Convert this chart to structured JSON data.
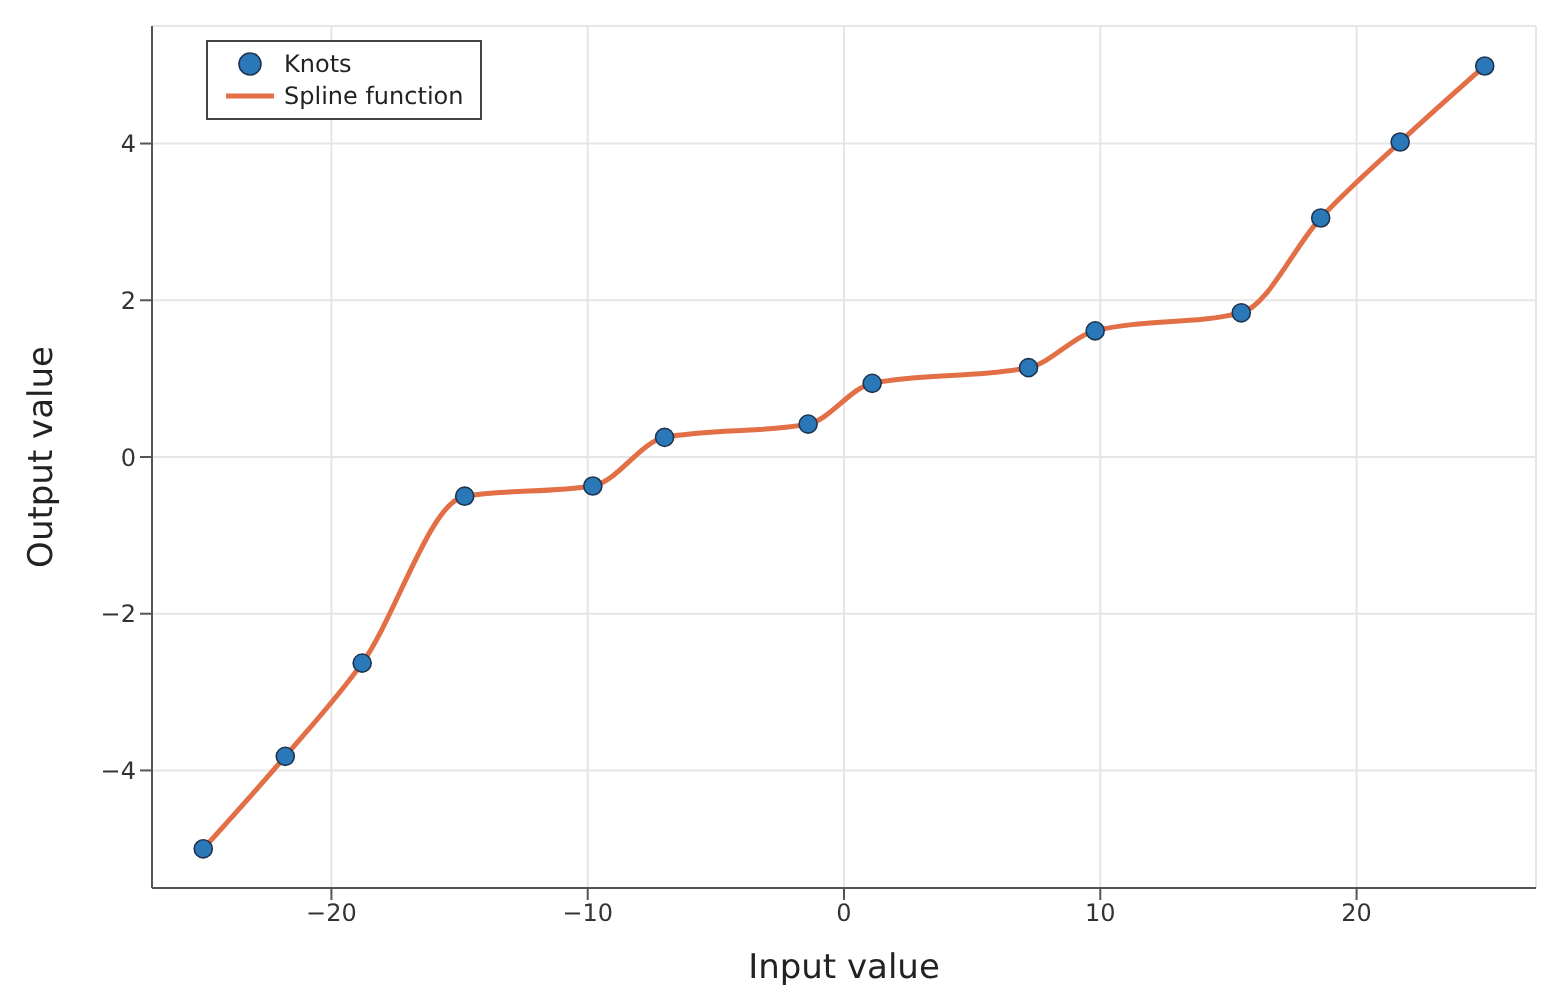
{
  "chart_data": {
    "type": "line",
    "xlabel": "Input value",
    "ylabel": "Output value",
    "xlim": [
      -27,
      27
    ],
    "xticks": [
      -20,
      -10,
      0,
      10,
      20
    ],
    "ylim": [
      -5.5,
      5.5
    ],
    "yticks": [
      -4,
      -2,
      0,
      2,
      4
    ],
    "grid": true,
    "legend": "top left",
    "series": [
      {
        "name": "Knots",
        "type": "scatter",
        "marker": "circle",
        "color": "#2b78b8",
        "x": [
          -25,
          -21.8,
          -18.8,
          -14.8,
          -9.8,
          -7,
          -1.4,
          1.1,
          7.2,
          9.8,
          15.5,
          18.6,
          21.7,
          25
        ],
        "values": [
          -5,
          -3.82,
          -2.63,
          -0.5,
          -0.37,
          0.25,
          0.42,
          0.94,
          1.14,
          1.61,
          1.84,
          3.05,
          4.02,
          4.99
        ]
      },
      {
        "name": "Spline function",
        "color": "#e26f46",
        "x": [
          -25,
          -21.8,
          -18.8,
          -14.8,
          -9.8,
          -7,
          -1.4,
          1.1,
          7.2,
          9.8,
          15.5,
          18.6,
          21.7,
          25
        ],
        "values": [
          -5,
          -3.82,
          -2.63,
          -0.5,
          -0.37,
          0.25,
          0.42,
          0.94,
          1.14,
          1.61,
          1.84,
          3.05,
          4.02,
          4.99
        ]
      }
    ]
  }
}
